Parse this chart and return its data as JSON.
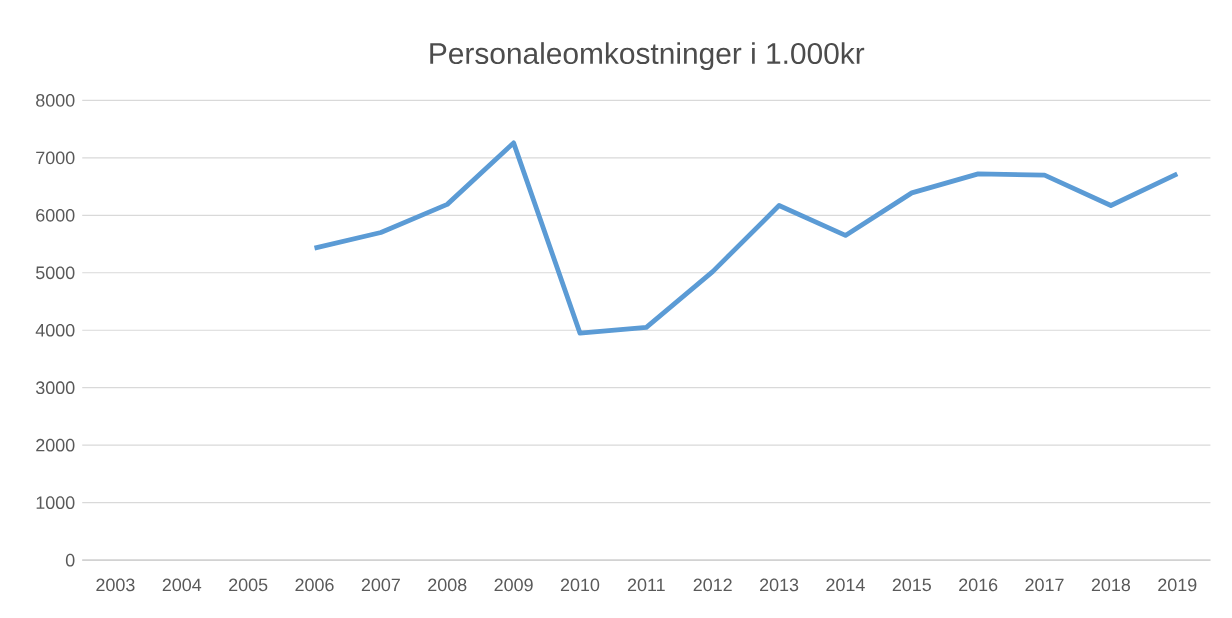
{
  "chart_data": {
    "type": "line",
    "title": "Personaleomkostninger i 1.000kr",
    "categories": [
      "2003",
      "2004",
      "2005",
      "2006",
      "2007",
      "2008",
      "2009",
      "2010",
      "2011",
      "2012",
      "2013",
      "2014",
      "2015",
      "2016",
      "2017",
      "2018",
      "2019"
    ],
    "values": [
      null,
      null,
      null,
      5430,
      5700,
      6190,
      7260,
      3950,
      4050,
      5020,
      6170,
      5650,
      6390,
      6720,
      6700,
      6170,
      6720
    ],
    "color": "#5b9bd5",
    "ylim": [
      0,
      8000
    ],
    "yticks": [
      0,
      1000,
      2000,
      3000,
      4000,
      5000,
      6000,
      7000,
      8000
    ],
    "grid": "y",
    "marker": "none",
    "line_style": "solid"
  }
}
